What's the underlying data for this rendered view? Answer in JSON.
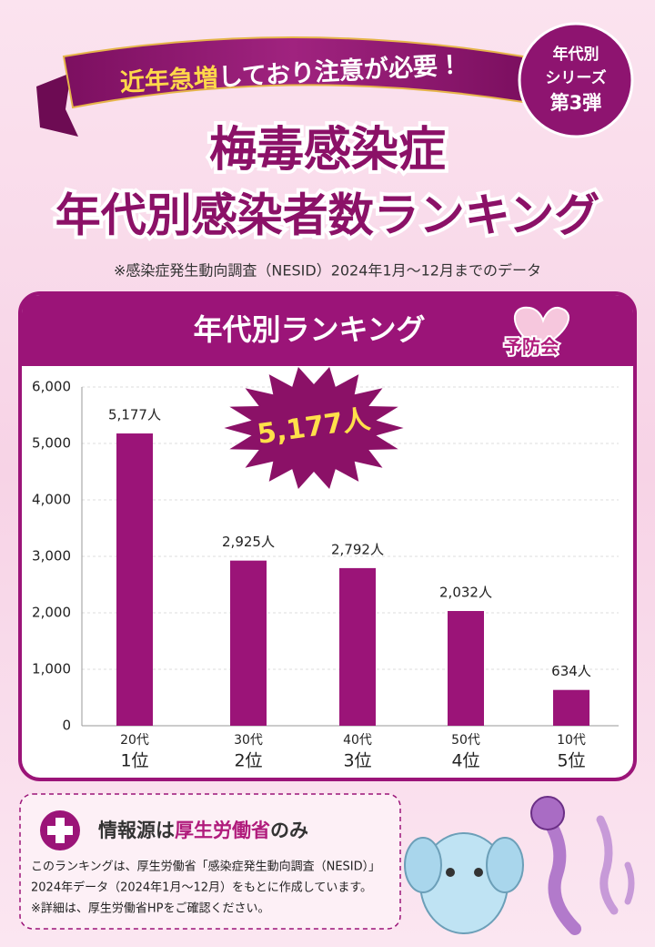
{
  "banner": {
    "highlight": "近年急増",
    "rest": "しており注意が必要！"
  },
  "series_badge": [
    "年代別",
    "シリーズ",
    "第3弾"
  ],
  "title_line1": "梅毒感染症",
  "title_line2": "年代別感染者数ランキング",
  "source_note": "※感染症発生動向調査（NESID）2024年1月〜12月までのデータ",
  "chart_data": {
    "type": "bar",
    "title": "年代別ランキング",
    "logo": "予防会",
    "annotation": "5,177人",
    "categories": [
      "20代",
      "30代",
      "40代",
      "50代",
      "10代"
    ],
    "ranks": [
      "1位",
      "2位",
      "3位",
      "4位",
      "5位"
    ],
    "values": [
      5177,
      2925,
      2792,
      2032,
      634
    ],
    "value_labels": [
      "5,177人",
      "2,925人",
      "2,792人",
      "2,032人",
      "634人"
    ],
    "color": "#9b1478",
    "ylim": [
      0,
      6000
    ],
    "yticks": [
      0,
      {
        "value": 1000,
        "label": "1,000"
      },
      {
        "value": 2000,
        "label": "2,000"
      },
      {
        "value": 3000,
        "label": "3,000"
      },
      {
        "value": 4000,
        "label": "4,000"
      },
      {
        "value": 5000,
        "label": "5,000"
      },
      {
        "value": 6000,
        "label": "6,000"
      }
    ],
    "grid": true
  },
  "info": {
    "title_prefix": "情報源は",
    "title_highlight": "厚生労働省",
    "title_suffix": "のみ",
    "lines": [
      "このランキングは、厚生労働省「感染症発生動向調査（NESID）」",
      "2024年データ（2024年1月〜12月）をもとに作成しています。",
      "※詳細は、厚生労働省HPをご確認ください。"
    ]
  }
}
